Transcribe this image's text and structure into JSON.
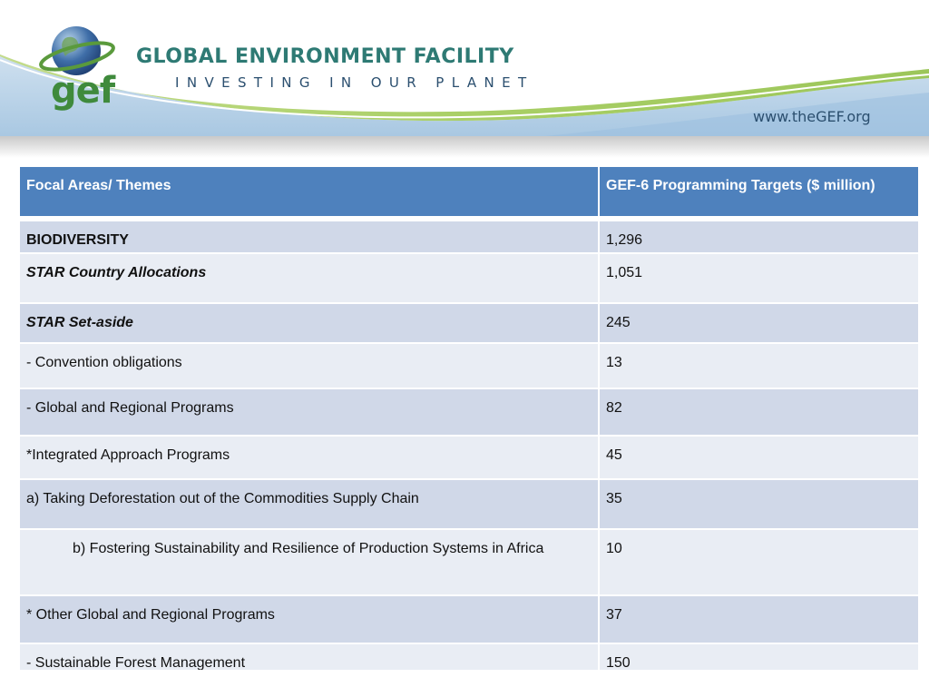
{
  "header": {
    "org_title": "GLOBAL ENVIRONMENT FACILITY",
    "tagline": "INVESTING IN OUR PLANET",
    "logo_text": "gef",
    "url": "www.theGEF.org"
  },
  "table": {
    "columns": [
      "Focal Areas/ Themes",
      "GEF-6 Programming Targets ($ million)"
    ],
    "rows": [
      {
        "label": "BIODIVERSITY",
        "value": "1,296"
      },
      {
        "label": "STAR Country Allocations",
        "value": "1,051"
      },
      {
        "label": "STAR Set-aside",
        "value": "245"
      },
      {
        "label": "- Convention obligations",
        "value": "13"
      },
      {
        "label": "- Global and Regional Programs",
        "value": "82"
      },
      {
        "label": "*Integrated Approach Programs",
        "value": "45"
      },
      {
        "label": "a) Taking Deforestation out of the Commodities Supply Chain",
        "value": "35"
      },
      {
        "label": "b) Fostering Sustainability and Resilience of Production Systems in Africa",
        "value": "10"
      },
      {
        "label": "* Other Global and Regional Programs",
        "value": "37"
      },
      {
        "label": "- Sustainable Forest Management",
        "value": "150"
      }
    ]
  },
  "colors": {
    "header_fill": "#4e81bd",
    "row_dark": "#d0d8e8",
    "row_light": "#e9edf4",
    "brand_green": "#3f8a3c",
    "brand_teal": "#2e7a74"
  }
}
